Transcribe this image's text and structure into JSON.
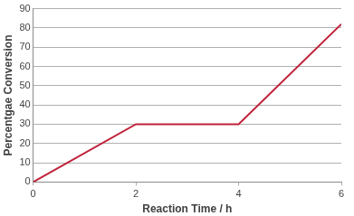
{
  "chart_data": {
    "type": "line",
    "x_label": "Reaction Time / h",
    "y_label": "Percentgae Conversion",
    "x": [
      0,
      2,
      4,
      6
    ],
    "values": [
      0,
      30,
      30,
      82
    ],
    "color": "#c0223b",
    "xlim": [
      0,
      6
    ],
    "xticks": [
      0,
      2,
      4,
      6
    ],
    "ylim": [
      0,
      90
    ],
    "yticks": [
      0,
      10,
      20,
      30,
      40,
      50,
      60,
      70,
      80,
      90
    ],
    "grid": "y"
  }
}
